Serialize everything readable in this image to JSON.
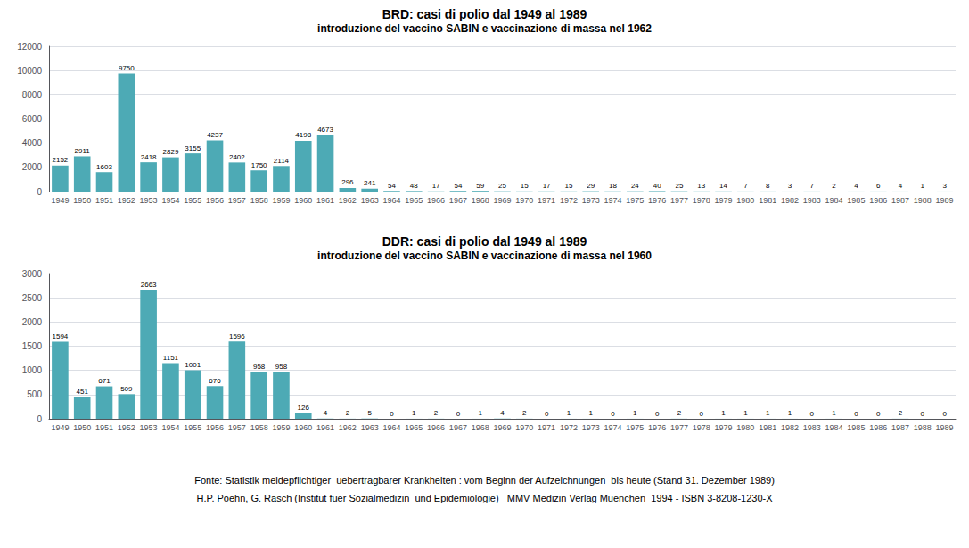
{
  "chart_data": [
    {
      "type": "bar",
      "title": "BRD: casi di polio dal 1949 al 1989",
      "subtitle": "introduzione del vaccino SABIN e vaccinazione di massa nel 1962",
      "categories": [
        "1949",
        "1950",
        "1951",
        "1952",
        "1953",
        "1954",
        "1955",
        "1956",
        "1957",
        "1958",
        "1959",
        "1960",
        "1961",
        "1962",
        "1963",
        "1964",
        "1965",
        "1966",
        "1967",
        "1968",
        "1969",
        "1970",
        "1971",
        "1972",
        "1973",
        "1974",
        "1975",
        "1976",
        "1977",
        "1978",
        "1979",
        "1980",
        "1981",
        "1982",
        "1983",
        "1984",
        "1985",
        "1986",
        "1987",
        "1988",
        "1989"
      ],
      "values": [
        2152,
        2911,
        1603,
        9750,
        2418,
        2829,
        3155,
        4237,
        2402,
        1750,
        2114,
        4198,
        4673,
        296,
        241,
        54,
        48,
        17,
        54,
        59,
        25,
        15,
        17,
        15,
        29,
        18,
        24,
        40,
        25,
        13,
        14,
        7,
        8,
        3,
        7,
        2,
        4,
        6,
        4,
        1,
        3
      ],
      "color": "#4DAAB5",
      "ylim": [
        0,
        12000
      ],
      "yticks": [
        0,
        2000,
        4000,
        6000,
        8000,
        10000,
        12000
      ],
      "grid": true,
      "data_labels": true
    },
    {
      "type": "bar",
      "title": "DDR: casi di polio dal 1949 al 1989",
      "subtitle": "introduzione del vaccino SABIN e vaccinazione di massa nel 1960",
      "categories": [
        "1949",
        "1950",
        "1951",
        "1952",
        "1953",
        "1954",
        "1955",
        "1956",
        "1957",
        "1958",
        "1959",
        "1960",
        "1961",
        "1962",
        "1963",
        "1964",
        "1965",
        "1966",
        "1967",
        "1968",
        "1969",
        "1970",
        "1971",
        "1972",
        "1973",
        "1974",
        "1975",
        "1976",
        "1977",
        "1978",
        "1979",
        "1980",
        "1981",
        "1982",
        "1983",
        "1984",
        "1985",
        "1986",
        "1987",
        "1988",
        "1989"
      ],
      "values": [
        1594,
        451,
        671,
        509,
        2663,
        1151,
        1001,
        676,
        1596,
        958,
        958,
        126,
        4,
        2,
        5,
        0,
        1,
        2,
        0,
        1,
        4,
        2,
        0,
        1,
        1,
        0,
        1,
        0,
        2,
        0,
        1,
        1,
        1,
        1,
        0,
        1,
        0,
        0,
        2,
        0,
        0
      ],
      "color": "#4DAAB5",
      "ylim": [
        0,
        3000
      ],
      "yticks": [
        0,
        500,
        1000,
        1500,
        2000,
        2500,
        3000
      ],
      "grid": true,
      "data_labels": true,
      "annotations": [
        "Fonte: Statistik meldepflichtiger  uebertragbarer Krankheiten : vom Beginn der Aufzeichnungen  bis heute (Stand 31. Dezember 1989)",
        "H.P. Poehn, G. Rasch (Institut fuer Sozialmedizin  und Epidemiologie)   MMV Medizin Verlag Muenchen  1994 - ISBN 3-8208-1230-X"
      ]
    }
  ]
}
